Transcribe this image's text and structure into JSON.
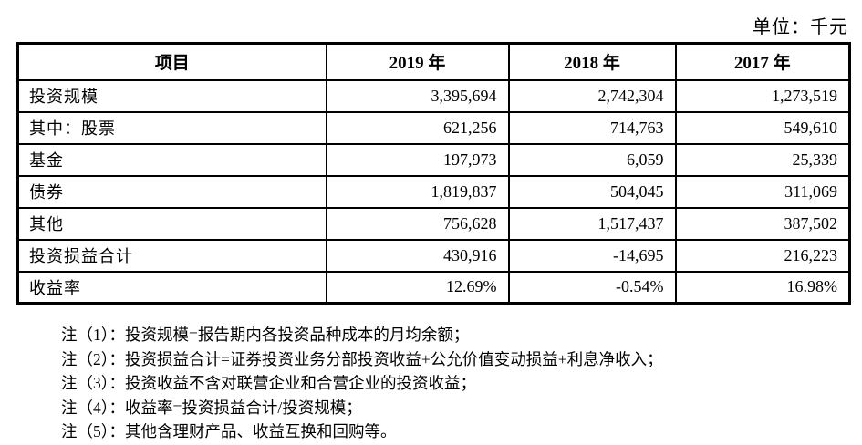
{
  "unit_label": "单位：千元",
  "table": {
    "headers": [
      "项目",
      "2019 年",
      "2018 年",
      "2017 年"
    ],
    "rows": [
      {
        "label": "投资规模",
        "y2019": "3,395,694",
        "y2018": "2,742,304",
        "y2017": "1,273,519"
      },
      {
        "label": "其中：股票",
        "y2019": "621,256",
        "y2018": "714,763",
        "y2017": "549,610"
      },
      {
        "label": "基金",
        "y2019": "197,973",
        "y2018": "6,059",
        "y2017": "25,339"
      },
      {
        "label": "债券",
        "y2019": "1,819,837",
        "y2018": "504,045",
        "y2017": "311,069"
      },
      {
        "label": "其他",
        "y2019": "756,628",
        "y2018": "1,517,437",
        "y2017": "387,502"
      },
      {
        "label": "投资损益合计",
        "y2019": "430,916",
        "y2018": "-14,695",
        "y2017": "216,223"
      },
      {
        "label": "收益率",
        "y2019": "12.69%",
        "y2018": "-0.54%",
        "y2017": "16.98%"
      }
    ]
  },
  "notes": [
    "注（1）：投资规模=报告期内各投资品种成本的月均余额；",
    "注（2）：投资损益合计=证券投资业务分部投资收益+公允价值变动损益+利息净收入；",
    "注（3）：投资收益不含对联营企业和合营企业的投资收益；",
    "注（4）：收益率=投资损益合计/投资规模；",
    "注（5）：其他含理财产品、收益互换和回购等。"
  ]
}
